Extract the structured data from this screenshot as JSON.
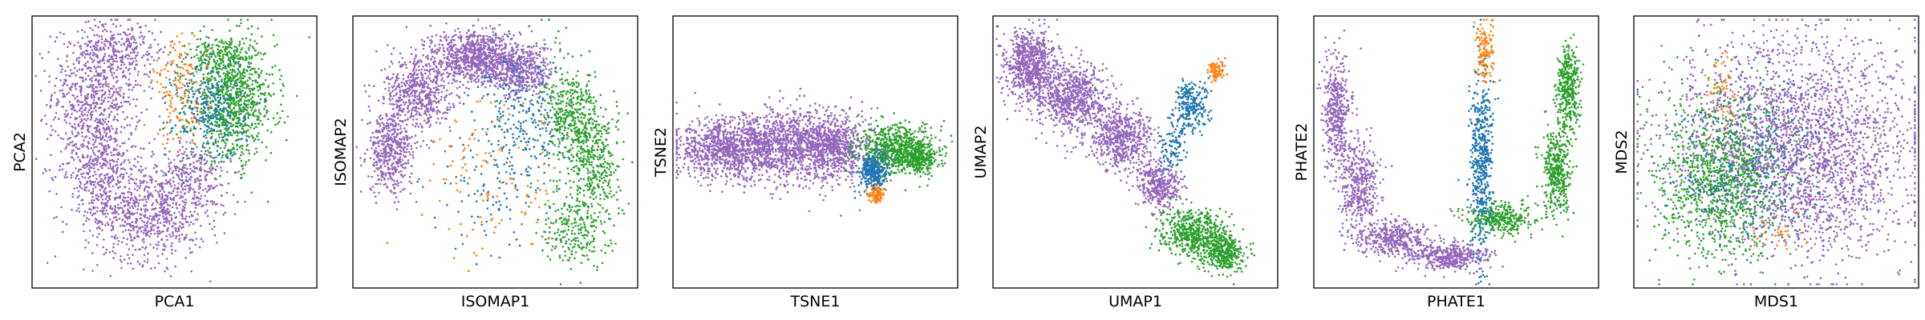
{
  "chart_data": [
    {
      "type": "scatter",
      "title": "",
      "xlabel": "PCA1",
      "ylabel": "PCA2",
      "grid": false,
      "ticks": false,
      "xlim": [
        -1,
        1
      ],
      "ylim": [
        -1,
        1
      ],
      "series": [
        {
          "name": "purple",
          "color": "#9467bd",
          "n": 2300,
          "clusters": [
            {
              "cx": -0.55,
              "cy": 0.45,
              "sx": 0.16,
              "sy": 0.25,
              "w": 0.3
            },
            {
              "cx": -0.55,
              "cy": -0.1,
              "sx": 0.14,
              "sy": 0.2,
              "w": 0.18
            },
            {
              "cx": -0.2,
              "cy": -0.45,
              "sx": 0.22,
              "sy": 0.18,
              "w": 0.32
            },
            {
              "cx": 0.12,
              "cy": -0.2,
              "sx": 0.13,
              "sy": 0.16,
              "w": 0.12
            },
            {
              "cx": -0.35,
              "cy": 0.78,
              "sx": 0.16,
              "sy": 0.1,
              "w": 0.08
            }
          ]
        },
        {
          "name": "green",
          "color": "#2ca02c",
          "n": 1100,
          "clusters": [
            {
              "cx": 0.42,
              "cy": 0.38,
              "sx": 0.15,
              "sy": 0.22,
              "w": 0.85
            },
            {
              "cx": 0.3,
              "cy": 0.7,
              "sx": 0.1,
              "sy": 0.08,
              "w": 0.15
            }
          ]
        },
        {
          "name": "blue",
          "color": "#1f77b4",
          "n": 300,
          "clusters": [
            {
              "cx": 0.25,
              "cy": 0.32,
              "sx": 0.13,
              "sy": 0.2,
              "w": 1.0
            }
          ]
        },
        {
          "name": "orange",
          "color": "#ff7f0e",
          "n": 140,
          "clusters": [
            {
              "cx": 0.05,
              "cy": 0.45,
              "sx": 0.1,
              "sy": 0.2,
              "w": 1.0
            }
          ]
        }
      ]
    },
    {
      "type": "scatter",
      "title": "",
      "xlabel": "ISOMAP1",
      "ylabel": "ISOMAP2",
      "grid": false,
      "ticks": false,
      "xlim": [
        -1,
        1
      ],
      "ylim": [
        -1,
        1
      ],
      "series": [
        {
          "name": "purple",
          "color": "#9467bd",
          "n": 2300,
          "clusters": [
            {
              "cx": -0.75,
              "cy": 0.0,
              "sx": 0.08,
              "sy": 0.15,
              "w": 0.2
            },
            {
              "cx": -0.55,
              "cy": 0.45,
              "sx": 0.12,
              "sy": 0.15,
              "w": 0.25
            },
            {
              "cx": -0.15,
              "cy": 0.72,
              "sx": 0.15,
              "sy": 0.1,
              "w": 0.35
            },
            {
              "cx": 0.18,
              "cy": 0.6,
              "sx": 0.12,
              "sy": 0.1,
              "w": 0.2
            }
          ]
        },
        {
          "name": "green",
          "color": "#2ca02c",
          "n": 1000,
          "clusters": [
            {
              "cx": 0.55,
              "cy": 0.25,
              "sx": 0.1,
              "sy": 0.18,
              "w": 0.45
            },
            {
              "cx": 0.72,
              "cy": -0.1,
              "sx": 0.08,
              "sy": 0.2,
              "w": 0.3
            },
            {
              "cx": 0.58,
              "cy": -0.55,
              "sx": 0.12,
              "sy": 0.15,
              "w": 0.25
            }
          ]
        },
        {
          "name": "blue",
          "color": "#1f77b4",
          "n": 350,
          "clusters": [
            {
              "cx": 0.2,
              "cy": 0.25,
              "sx": 0.16,
              "sy": 0.3,
              "w": 0.75
            },
            {
              "cx": 0.0,
              "cy": -0.35,
              "sx": 0.25,
              "sy": 0.25,
              "w": 0.25
            }
          ]
        },
        {
          "name": "orange",
          "color": "#ff7f0e",
          "n": 110,
          "clusters": [
            {
              "cx": 0.0,
              "cy": -0.2,
              "sx": 0.25,
              "sy": 0.3,
              "w": 1.0
            }
          ]
        }
      ]
    },
    {
      "type": "scatter",
      "title": "",
      "xlabel": "TSNE1",
      "ylabel": "TSNE2",
      "grid": false,
      "ticks": false,
      "xlim": [
        -1,
        1
      ],
      "ylim": [
        -1,
        1
      ],
      "series": [
        {
          "name": "purple",
          "color": "#9467bd",
          "n": 2600,
          "clusters": [
            {
              "cx": -0.65,
              "cy": 0.02,
              "sx": 0.18,
              "sy": 0.11,
              "w": 0.33
            },
            {
              "cx": -0.25,
              "cy": 0.05,
              "sx": 0.18,
              "sy": 0.13,
              "w": 0.34
            },
            {
              "cx": 0.12,
              "cy": 0.04,
              "sx": 0.15,
              "sy": 0.13,
              "w": 0.33
            }
          ]
        },
        {
          "name": "green",
          "color": "#2ca02c",
          "n": 900,
          "clusters": [
            {
              "cx": 0.58,
              "cy": 0.02,
              "sx": 0.14,
              "sy": 0.09,
              "w": 0.75
            },
            {
              "cx": 0.75,
              "cy": -0.05,
              "sx": 0.06,
              "sy": 0.05,
              "w": 0.25
            }
          ]
        },
        {
          "name": "blue",
          "color": "#1f77b4",
          "n": 300,
          "clusters": [
            {
              "cx": 0.41,
              "cy": -0.15,
              "sx": 0.05,
              "sy": 0.07,
              "w": 1.0
            }
          ]
        },
        {
          "name": "orange",
          "color": "#ff7f0e",
          "n": 90,
          "clusters": [
            {
              "cx": 0.44,
              "cy": -0.32,
              "sx": 0.03,
              "sy": 0.03,
              "w": 1.0
            }
          ]
        }
      ]
    },
    {
      "type": "scatter",
      "title": "",
      "xlabel": "UMAP1",
      "ylabel": "UMAP2",
      "grid": false,
      "ticks": false,
      "xlim": [
        -1,
        1
      ],
      "ylim": [
        -1,
        1
      ],
      "series": [
        {
          "name": "purple",
          "color": "#9467bd",
          "n": 2400,
          "clusters": [
            {
              "cx": -0.75,
              "cy": 0.65,
              "sx": 0.09,
              "sy": 0.14,
              "w": 0.3
            },
            {
              "cx": -0.45,
              "cy": 0.4,
              "sx": 0.13,
              "sy": 0.13,
              "w": 0.3
            },
            {
              "cx": -0.1,
              "cy": 0.1,
              "sx": 0.12,
              "sy": 0.12,
              "w": 0.25
            },
            {
              "cx": 0.18,
              "cy": -0.25,
              "sx": 0.08,
              "sy": 0.09,
              "w": 0.15
            }
          ]
        },
        {
          "name": "green",
          "color": "#2ca02c",
          "n": 900,
          "clusters": [
            {
              "cx": 0.4,
              "cy": -0.6,
              "sx": 0.11,
              "sy": 0.08,
              "w": 0.55
            },
            {
              "cx": 0.62,
              "cy": -0.75,
              "sx": 0.08,
              "sy": 0.07,
              "w": 0.45
            }
          ]
        },
        {
          "name": "blue",
          "color": "#1f77b4",
          "n": 350,
          "clusters": [
            {
              "cx": 0.4,
              "cy": 0.35,
              "sx": 0.06,
              "sy": 0.1,
              "w": 0.7
            },
            {
              "cx": 0.28,
              "cy": 0.05,
              "sx": 0.05,
              "sy": 0.12,
              "w": 0.3
            }
          ]
        },
        {
          "name": "orange",
          "color": "#ff7f0e",
          "n": 80,
          "clusters": [
            {
              "cx": 0.58,
              "cy": 0.62,
              "sx": 0.03,
              "sy": 0.04,
              "w": 1.0
            }
          ]
        }
      ]
    },
    {
      "type": "scatter",
      "title": "",
      "xlabel": "PHATE1",
      "ylabel": "PHATE2",
      "grid": false,
      "ticks": false,
      "xlim": [
        -1,
        1
      ],
      "ylim": [
        -1,
        1
      ],
      "series": [
        {
          "name": "purple",
          "color": "#9467bd",
          "n": 1700,
          "clusters": [
            {
              "cx": -0.85,
              "cy": 0.3,
              "sx": 0.05,
              "sy": 0.2,
              "w": 0.25
            },
            {
              "cx": -0.7,
              "cy": -0.25,
              "sx": 0.07,
              "sy": 0.17,
              "w": 0.25
            },
            {
              "cx": -0.45,
              "cy": -0.65,
              "sx": 0.13,
              "sy": 0.07,
              "w": 0.25
            },
            {
              "cx": -0.05,
              "cy": -0.78,
              "sx": 0.14,
              "sy": 0.05,
              "w": 0.25
            }
          ]
        },
        {
          "name": "green",
          "color": "#2ca02c",
          "n": 1100,
          "clusters": [
            {
              "cx": 0.3,
              "cy": -0.5,
              "sx": 0.12,
              "sy": 0.06,
              "w": 0.3
            },
            {
              "cx": 0.72,
              "cy": -0.15,
              "sx": 0.05,
              "sy": 0.17,
              "w": 0.35
            },
            {
              "cx": 0.8,
              "cy": 0.45,
              "sx": 0.04,
              "sy": 0.17,
              "w": 0.35
            }
          ]
        },
        {
          "name": "blue",
          "color": "#1f77b4",
          "n": 500,
          "clusters": [
            {
              "cx": 0.18,
              "cy": -0.1,
              "sx": 0.04,
              "sy": 0.35,
              "w": 1.0
            }
          ]
        },
        {
          "name": "orange",
          "color": "#ff7f0e",
          "n": 130,
          "clusters": [
            {
              "cx": 0.2,
              "cy": 0.75,
              "sx": 0.03,
              "sy": 0.12,
              "w": 1.0
            }
          ]
        }
      ]
    },
    {
      "type": "scatter",
      "title": "",
      "xlabel": "MDS1",
      "ylabel": "MDS2",
      "grid": false,
      "ticks": false,
      "xlim": [
        -1,
        1
      ],
      "ylim": [
        -1,
        1
      ],
      "series": [
        {
          "name": "purple",
          "color": "#9467bd",
          "n": 2600,
          "clusters": [
            {
              "cx": 0.12,
              "cy": 0.12,
              "sx": 0.45,
              "sy": 0.38,
              "w": 0.8
            },
            {
              "cx": 0.35,
              "cy": -0.25,
              "sx": 0.3,
              "sy": 0.3,
              "w": 0.2
            }
          ]
        },
        {
          "name": "green",
          "color": "#2ca02c",
          "n": 1100,
          "clusters": [
            {
              "cx": -0.4,
              "cy": -0.2,
              "sx": 0.22,
              "sy": 0.3,
              "w": 1.0
            }
          ]
        },
        {
          "name": "blue",
          "color": "#1f77b4",
          "n": 350,
          "clusters": [
            {
              "cx": -0.2,
              "cy": -0.1,
              "sx": 0.3,
              "sy": 0.35,
              "w": 1.0
            }
          ]
        },
        {
          "name": "orange",
          "color": "#ff7f0e",
          "n": 90,
          "clusters": [
            {
              "cx": -0.4,
              "cy": 0.45,
              "sx": 0.06,
              "sy": 0.15,
              "w": 0.6
            },
            {
              "cx": 0.05,
              "cy": -0.6,
              "sx": 0.1,
              "sy": 0.07,
              "w": 0.4
            }
          ]
        }
      ]
    }
  ]
}
